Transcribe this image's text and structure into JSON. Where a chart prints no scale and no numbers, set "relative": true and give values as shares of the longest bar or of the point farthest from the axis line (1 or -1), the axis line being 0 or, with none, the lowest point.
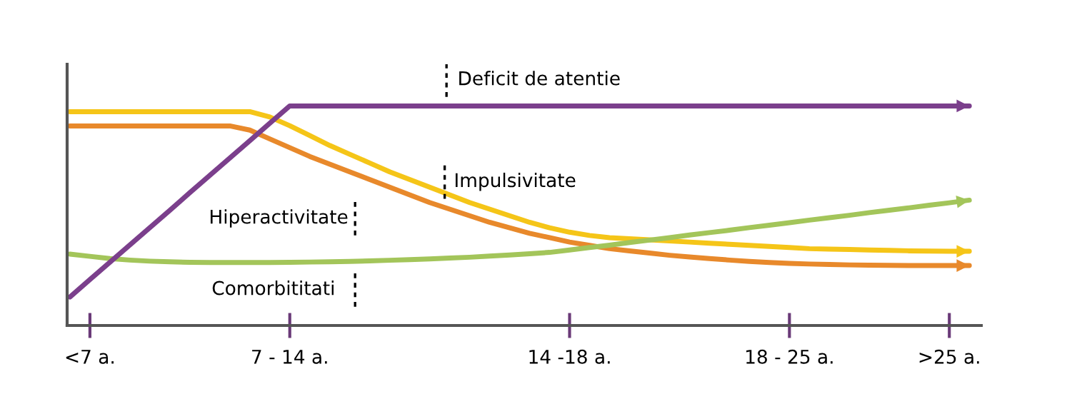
{
  "chart_data": {
    "type": "line",
    "relative": true,
    "categories": [
      null,
      "<7 a.",
      null,
      null,
      null,
      null,
      null,
      null,
      null,
      null,
      null,
      "7 - 14 a.",
      null,
      null,
      null,
      null,
      null,
      null,
      null,
      null,
      null,
      null,
      null,
      null,
      null,
      "14 -18 a.",
      null,
      null,
      null,
      null,
      null,
      null,
      null,
      null,
      null,
      null,
      "18 - 25 a.",
      null,
      null,
      null,
      null,
      null,
      null,
      null,
      ">25 a.",
      null
    ],
    "series": [
      {
        "color": "#f5c518",
        "values": [
          0.974,
          0.974,
          0.974,
          0.974,
          0.974,
          0.974,
          0.974,
          0.974,
          0.974,
          0.974,
          0.95,
          0.91,
          0.865,
          0.82,
          0.78,
          0.74,
          0.7,
          0.665,
          0.63,
          0.595,
          0.56,
          0.53,
          0.5,
          0.47,
          0.445,
          0.425,
          0.41,
          0.4,
          0.395,
          0.39,
          0.385,
          0.38,
          0.375,
          0.37,
          0.365,
          0.36,
          0.355,
          0.35,
          0.348,
          0.346,
          0.344,
          0.342,
          0.34,
          0.339,
          0.338,
          0.338
        ]
      },
      {
        "color": "#e8892b",
        "values": [
          0.909,
          0.909,
          0.909,
          0.909,
          0.909,
          0.909,
          0.909,
          0.909,
          0.909,
          0.89,
          0.85,
          0.81,
          0.77,
          0.735,
          0.7,
          0.665,
          0.63,
          0.595,
          0.56,
          0.53,
          0.5,
          0.47,
          0.445,
          0.42,
          0.4,
          0.38,
          0.365,
          0.35,
          0.34,
          0.33,
          0.32,
          0.312,
          0.305,
          0.298,
          0.292,
          0.287,
          0.283,
          0.28,
          0.278,
          0.276,
          0.275,
          0.274,
          0.273,
          0.273,
          0.273,
          0.273
        ]
      },
      {
        "color": "#a3c55a",
        "values": [
          0.325,
          0.315,
          0.305,
          0.298,
          0.293,
          0.29,
          0.288,
          0.287,
          0.287,
          0.287,
          0.287,
          0.288,
          0.289,
          0.29,
          0.292,
          0.294,
          0.297,
          0.3,
          0.303,
          0.307,
          0.311,
          0.316,
          0.321,
          0.327,
          0.333,
          0.344,
          0.355,
          0.366,
          0.378,
          0.389,
          0.4,
          0.412,
          0.423,
          0.434,
          0.446,
          0.457,
          0.468,
          0.48,
          0.491,
          0.502,
          0.514,
          0.525,
          0.536,
          0.548,
          0.559,
          0.571
        ]
      },
      {
        "color": "#7b3f8c",
        "values": [
          0.13,
          0.209,
          0.288,
          0.367,
          0.446,
          0.525,
          0.605,
          0.684,
          0.763,
          0.842,
          0.921,
          1.0,
          1.0,
          1.0,
          1.0,
          1.0,
          1.0,
          1.0,
          1.0,
          1.0,
          1.0,
          1.0,
          1.0,
          1.0,
          1.0,
          1.0,
          1.0,
          1.0,
          1.0,
          1.0,
          1.0,
          1.0,
          1.0,
          1.0,
          1.0,
          1.0,
          1.0,
          1.0,
          1.0,
          1.0,
          1.0,
          1.0,
          1.0,
          1.0,
          1.0,
          1.0
        ]
      }
    ],
    "annotations": [
      "Deficit de atentie",
      "Impulsivitate",
      "Hiperactivitate",
      "Comorbititati"
    ]
  }
}
